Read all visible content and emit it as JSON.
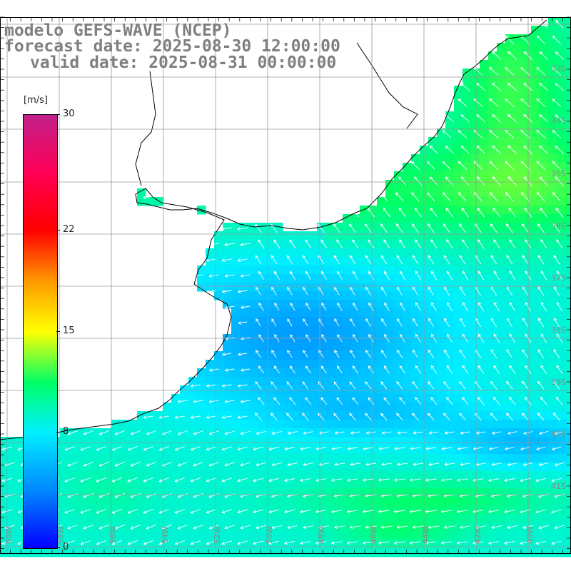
{
  "title": {
    "line1": "modelo GEFS-WAVE (NCEP)",
    "line2": "forecast date: 2025-08-30 12:00:00",
    "line3": "valid date: 2025-08-31 00:00:00"
  },
  "legend": {
    "unit": "[m/s]",
    "ticks": [
      {
        "label": "30",
        "value": 30
      },
      {
        "label": "22",
        "value": 22
      },
      {
        "label": "15",
        "value": 15
      },
      {
        "label": "8",
        "value": 8
      },
      {
        "label": "0",
        "value": 0
      }
    ],
    "stops": [
      {
        "value": 0,
        "color": "#0000ff"
      },
      {
        "value": 4,
        "color": "#0088ff"
      },
      {
        "value": 8,
        "color": "#00f0ff"
      },
      {
        "value": 11.5,
        "color": "#00ff66"
      },
      {
        "value": 15,
        "color": "#ffff00"
      },
      {
        "value": 18.5,
        "color": "#ff9900"
      },
      {
        "value": 22,
        "color": "#ff0000"
      },
      {
        "value": 26,
        "color": "#ff0055"
      },
      {
        "value": 30,
        "color": "#c0208a"
      }
    ]
  },
  "map": {
    "land_color": "#ffffff",
    "coast_color": "#000000",
    "grid_color": "#9a9a9a",
    "arrow_color": "#ffffff",
    "longitude_labels": [
      "60W",
      "58W",
      "56W",
      "54W",
      "52W",
      "50W",
      "48W",
      "46W",
      "44W",
      "42W",
      "40W"
    ],
    "latitude_labels": [
      "33S",
      "34S",
      "35S",
      "36S",
      "37S",
      "38S",
      "39S",
      "40S",
      "41S"
    ]
  }
}
